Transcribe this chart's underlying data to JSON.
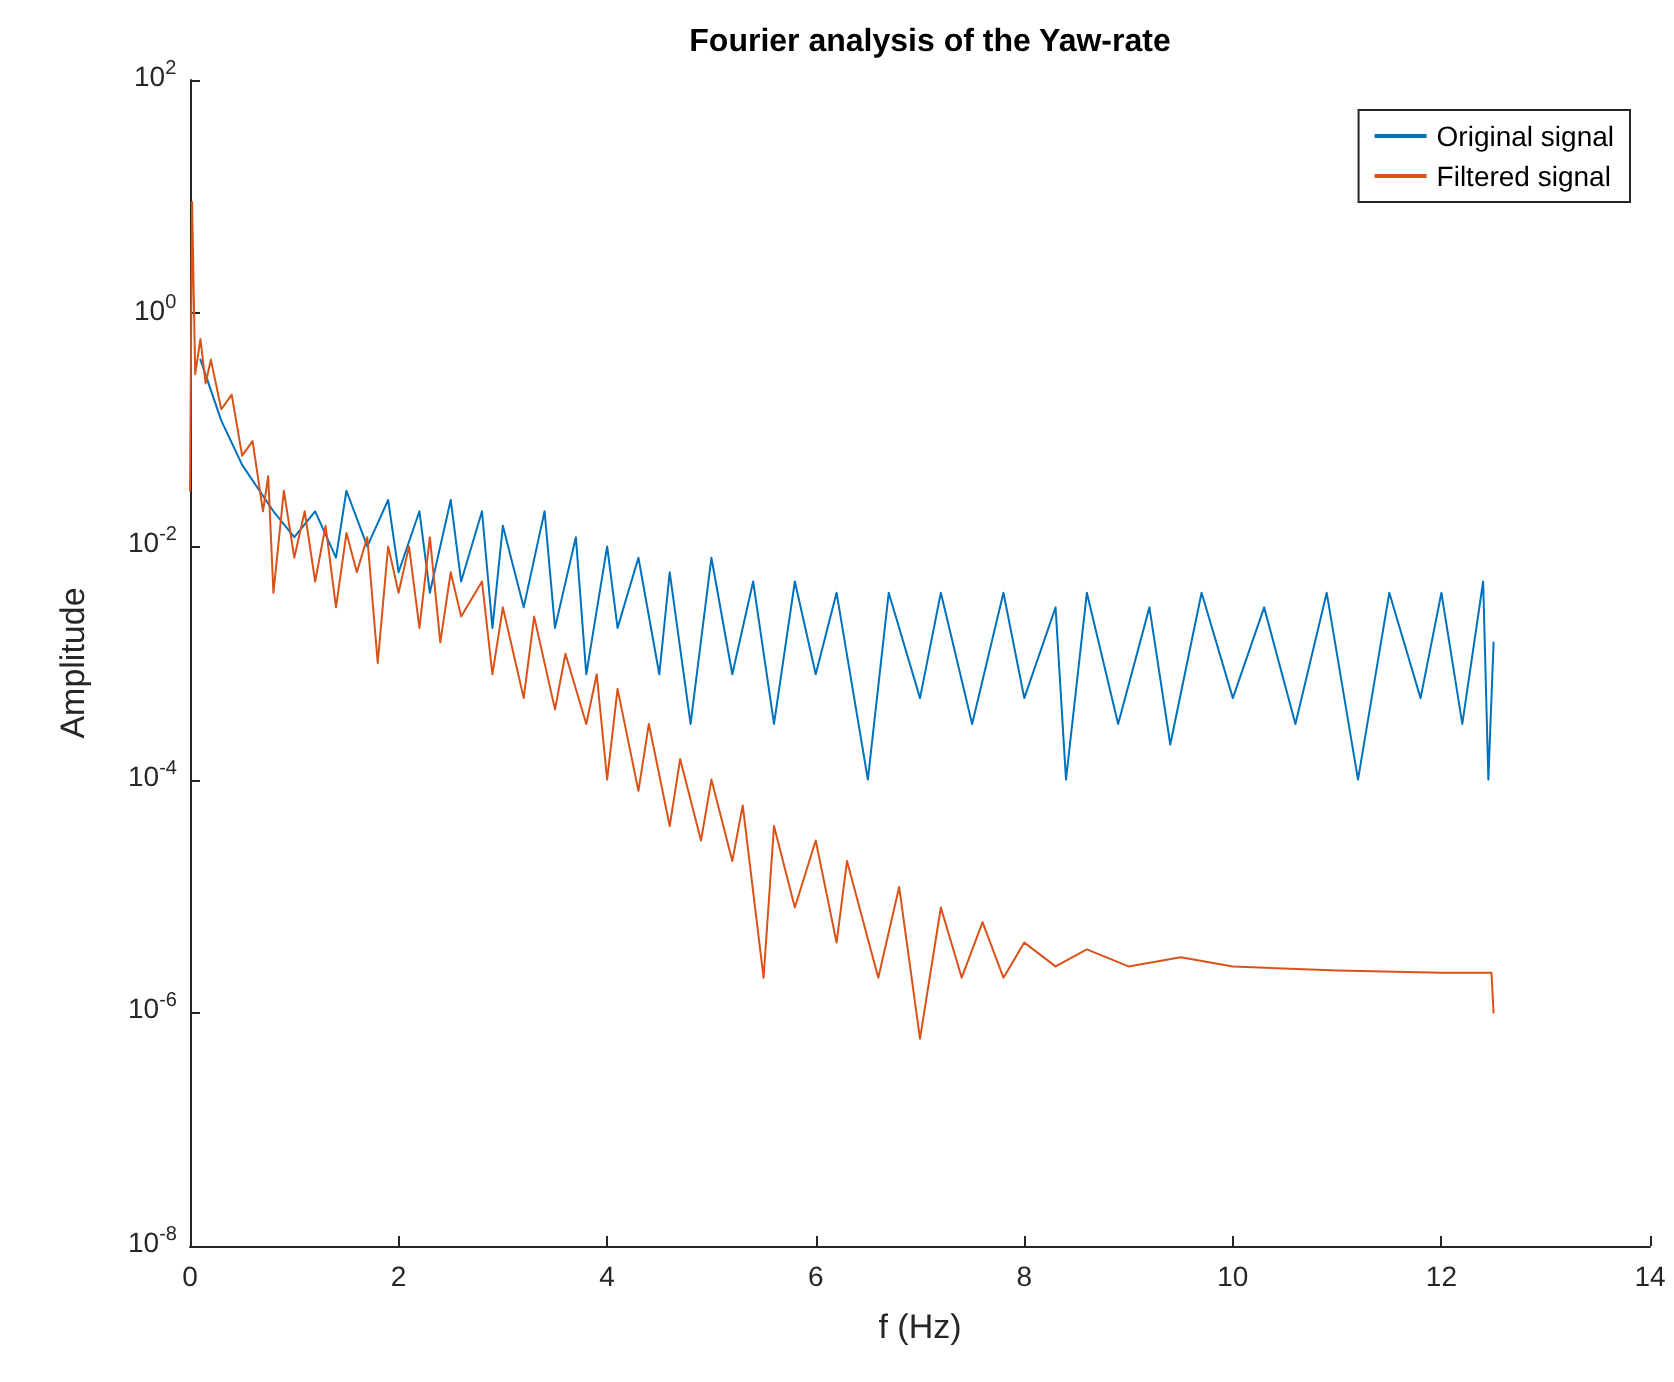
{
  "chart_data": {
    "type": "line",
    "title": "Fourier analysis of the Yaw-rate",
    "xlabel": "f (Hz)",
    "ylabel": "Amplitude",
    "log": "y",
    "grid": false,
    "legend": "top right",
    "marker": "none",
    "line_style": "solid",
    "xlim": [
      0,
      14
    ],
    "xticks": [
      0,
      2,
      4,
      6,
      8,
      10,
      12,
      14
    ],
    "ylim": [
      1e-08,
      100
    ],
    "yticks": [
      {
        "value": 1e-08,
        "label": "10$^{-8}$"
      },
      {
        "value": 1e-06,
        "label": "10$^{-6}$"
      },
      {
        "value": 0.0001,
        "label": "10$^{-4}$"
      },
      {
        "value": 0.01,
        "label": "10$^{-2}$"
      },
      {
        "value": 1,
        "label": "10$^{0}$"
      },
      {
        "value": 100,
        "label": "10$^{2}$"
      }
    ],
    "series": [
      {
        "name": "Original signal",
        "color": "#0072bd",
        "x": [
          0.1,
          0.3,
          0.5,
          0.8,
          1.0,
          1.2,
          1.4,
          1.5,
          1.7,
          1.9,
          2.0,
          2.2,
          2.3,
          2.5,
          2.6,
          2.8,
          2.9,
          3.0,
          3.2,
          3.4,
          3.5,
          3.7,
          3.8,
          4.0,
          4.1,
          4.3,
          4.5,
          4.6,
          4.8,
          5.0,
          5.2,
          5.4,
          5.6,
          5.8,
          6.0,
          6.2,
          6.5,
          6.7,
          7.0,
          7.2,
          7.5,
          7.8,
          8.0,
          8.3,
          8.4,
          8.6,
          8.9,
          9.2,
          9.4,
          9.7,
          10.0,
          10.3,
          10.6,
          10.9,
          11.2,
          11.5,
          11.8,
          12.0,
          12.2,
          12.4,
          12.45,
          12.5
        ],
        "values": [
          0.4,
          0.12,
          0.05,
          0.02,
          0.012,
          0.02,
          0.008,
          0.03,
          0.01,
          0.025,
          0.006,
          0.02,
          0.004,
          0.025,
          0.005,
          0.02,
          0.002,
          0.015,
          0.003,
          0.02,
          0.002,
          0.012,
          0.0008,
          0.01,
          0.002,
          0.008,
          0.0008,
          0.006,
          0.0003,
          0.008,
          0.0008,
          0.005,
          0.0003,
          0.005,
          0.0008,
          0.004,
          0.0001,
          0.004,
          0.0005,
          0.004,
          0.0003,
          0.004,
          0.0005,
          0.003,
          0.0001,
          0.004,
          0.0003,
          0.003,
          0.0002,
          0.004,
          0.0005,
          0.003,
          0.0003,
          0.004,
          0.0001,
          0.004,
          0.0005,
          0.004,
          0.0003,
          0.005,
          0.0001,
          0.0015
        ]
      },
      {
        "name": "Filtered signal",
        "color": "#d95319",
        "x": [
          0,
          0.02,
          0.05,
          0.1,
          0.15,
          0.2,
          0.3,
          0.4,
          0.5,
          0.6,
          0.7,
          0.75,
          0.8,
          0.9,
          1.0,
          1.1,
          1.2,
          1.3,
          1.4,
          1.5,
          1.6,
          1.7,
          1.8,
          1.9,
          2.0,
          2.1,
          2.2,
          2.3,
          2.4,
          2.5,
          2.6,
          2.8,
          2.9,
          3.0,
          3.2,
          3.3,
          3.5,
          3.6,
          3.8,
          3.9,
          4.0,
          4.1,
          4.3,
          4.4,
          4.6,
          4.7,
          4.9,
          5.0,
          5.2,
          5.3,
          5.5,
          5.6,
          5.8,
          6.0,
          6.2,
          6.3,
          6.6,
          6.8,
          7.0,
          7.2,
          7.4,
          7.6,
          7.8,
          8.0,
          8.3,
          8.6,
          9.0,
          9.5,
          10,
          11,
          12,
          12.48,
          12.5
        ],
        "values": [
          0.03,
          9,
          0.3,
          0.6,
          0.25,
          0.4,
          0.15,
          0.2,
          0.06,
          0.08,
          0.02,
          0.04,
          0.004,
          0.03,
          0.008,
          0.02,
          0.005,
          0.015,
          0.003,
          0.013,
          0.006,
          0.012,
          0.001,
          0.01,
          0.004,
          0.01,
          0.002,
          0.012,
          0.0015,
          0.006,
          0.0025,
          0.005,
          0.0008,
          0.003,
          0.0005,
          0.0025,
          0.0004,
          0.0012,
          0.0003,
          0.0008,
          0.0001,
          0.0006,
          8e-05,
          0.0003,
          4e-05,
          0.00015,
          3e-05,
          0.0001,
          2e-05,
          6e-05,
          2e-06,
          4e-05,
          8e-06,
          3e-05,
          4e-06,
          2e-05,
          2e-06,
          1.2e-05,
          6e-07,
          8e-06,
          2e-06,
          6e-06,
          2e-06,
          4e-06,
          2.5e-06,
          3.5e-06,
          2.5e-06,
          3e-06,
          2.5e-06,
          2.3e-06,
          2.2e-06,
          2.2e-06,
          1e-06
        ]
      }
    ]
  }
}
